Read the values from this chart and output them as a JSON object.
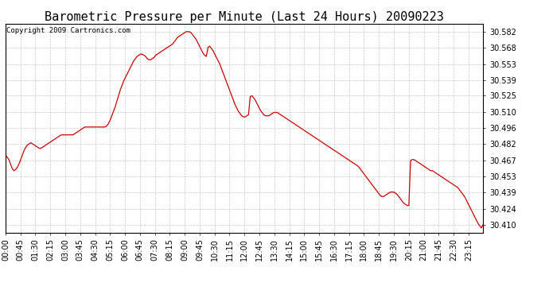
{
  "title": "Barometric Pressure per Minute (Last 24 Hours) 20090223",
  "copyright": "Copyright 2009 Cartronics.com",
  "line_color": "#cc0000",
  "bg_color": "#ffffff",
  "grid_color": "#b0b0b0",
  "yticks": [
    30.41,
    30.424,
    30.439,
    30.453,
    30.467,
    30.482,
    30.496,
    30.51,
    30.525,
    30.539,
    30.553,
    30.568,
    30.582
  ],
  "ylim": [
    30.403,
    30.589
  ],
  "xtick_labels": [
    "00:00",
    "00:45",
    "01:30",
    "02:15",
    "03:00",
    "03:45",
    "04:30",
    "05:15",
    "06:00",
    "06:45",
    "07:30",
    "08:15",
    "09:00",
    "09:45",
    "10:30",
    "11:15",
    "12:00",
    "12:45",
    "13:30",
    "14:15",
    "15:00",
    "15:45",
    "16:30",
    "17:15",
    "18:00",
    "18:45",
    "19:30",
    "20:15",
    "21:00",
    "21:45",
    "22:30",
    "23:15"
  ],
  "title_fontsize": 11,
  "tick_fontsize": 7,
  "copyright_fontsize": 6.5,
  "pressure_data": [
    30.472,
    30.47,
    30.468,
    30.464,
    30.46,
    30.458,
    30.459,
    30.461,
    30.464,
    30.468,
    30.472,
    30.476,
    30.479,
    30.481,
    30.482,
    30.483,
    30.482,
    30.481,
    30.48,
    30.479,
    30.478,
    30.478,
    30.479,
    30.48,
    30.481,
    30.482,
    30.483,
    30.484,
    30.485,
    30.486,
    30.487,
    30.488,
    30.489,
    30.49,
    30.49,
    30.49,
    30.49,
    30.49,
    30.49,
    30.49,
    30.49,
    30.491,
    30.492,
    30.493,
    30.494,
    30.495,
    30.496,
    30.497,
    30.497,
    30.497,
    30.497,
    30.497,
    30.497,
    30.497,
    30.497,
    30.497,
    30.497,
    30.497,
    30.497,
    30.497,
    30.498,
    30.5,
    30.503,
    30.507,
    30.511,
    30.515,
    30.52,
    30.525,
    30.53,
    30.534,
    30.538,
    30.541,
    30.544,
    30.547,
    30.55,
    30.553,
    30.556,
    30.558,
    30.56,
    30.561,
    30.562,
    30.562,
    30.561,
    30.56,
    30.558,
    30.557,
    30.557,
    30.558,
    30.559,
    30.561,
    30.562,
    30.563,
    30.564,
    30.565,
    30.566,
    30.567,
    30.568,
    30.569,
    30.57,
    30.571,
    30.573,
    30.575,
    30.577,
    30.578,
    30.579,
    30.58,
    30.581,
    30.582,
    30.582,
    30.582,
    30.581,
    30.579,
    30.577,
    30.575,
    30.572,
    30.569,
    30.566,
    30.563,
    30.561,
    30.56,
    30.568,
    30.569,
    30.567,
    30.565,
    30.562,
    30.559,
    30.556,
    30.553,
    30.549,
    30.545,
    30.541,
    30.537,
    30.533,
    30.529,
    30.525,
    30.521,
    30.517,
    30.514,
    30.511,
    30.509,
    30.507,
    30.506,
    30.506,
    30.507,
    30.508,
    30.524,
    30.525,
    30.523,
    30.521,
    30.518,
    30.515,
    30.512,
    30.51,
    30.508,
    30.507,
    30.507,
    30.507,
    30.508,
    30.509,
    30.51,
    30.51,
    30.51,
    30.509,
    30.508,
    30.507,
    30.506,
    30.505,
    30.504,
    30.503,
    30.502,
    30.501,
    30.5,
    30.499,
    30.498,
    30.497,
    30.496,
    30.495,
    30.494,
    30.493,
    30.492,
    30.491,
    30.49,
    30.489,
    30.488,
    30.487,
    30.486,
    30.485,
    30.484,
    30.483,
    30.482,
    30.481,
    30.48,
    30.479,
    30.478,
    30.477,
    30.476,
    30.475,
    30.474,
    30.473,
    30.472,
    30.471,
    30.47,
    30.469,
    30.468,
    30.467,
    30.466,
    30.465,
    30.464,
    30.463,
    30.462,
    30.46,
    30.458,
    30.456,
    30.454,
    30.452,
    30.45,
    30.448,
    30.446,
    30.444,
    30.442,
    30.44,
    30.438,
    30.436,
    30.435,
    30.435,
    30.436,
    30.437,
    30.438,
    30.439,
    30.439,
    30.439,
    30.438,
    30.437,
    30.435,
    30.433,
    30.431,
    30.429,
    30.428,
    30.427,
    30.427,
    30.467,
    30.468,
    30.468,
    30.467,
    30.466,
    30.465,
    30.464,
    30.463,
    30.462,
    30.461,
    30.46,
    30.459,
    30.458,
    30.458,
    30.457,
    30.456,
    30.455,
    30.454,
    30.453,
    30.452,
    30.451,
    30.45,
    30.449,
    30.448,
    30.447,
    30.446,
    30.445,
    30.444,
    30.443,
    30.441,
    30.439,
    30.437,
    30.435,
    30.432,
    30.429,
    30.426,
    30.423,
    30.42,
    30.417,
    30.414,
    30.411,
    30.409,
    30.407,
    30.41
  ]
}
